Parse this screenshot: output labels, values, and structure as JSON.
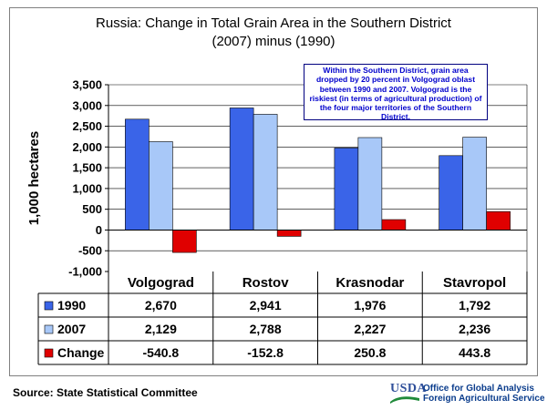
{
  "title_line1": "Russia:  Change in Total Grain Area in the Southern District",
  "title_line2": "(2007) minus (1990)",
  "note": "Within the Southern District, grain area dropped by 20 percent in Volgograd oblast between 1990 and 2007.  Volgograd is the riskiest (in terms of agricultural production) of the four major territories of the Southern District.",
  "source": "Source:  State Statistical Committee",
  "logo": {
    "name": "USDA",
    "line1": "Office for Global Analysis",
    "line2": "Foreign Agricultural Service"
  },
  "chart_data": {
    "type": "bar",
    "ylabel": "1,000 hectares",
    "ylim": [
      -1000,
      3500
    ],
    "yticks": [
      -1000,
      -500,
      0,
      500,
      1000,
      1500,
      2000,
      2500,
      3000,
      3500
    ],
    "ytick_labels": [
      "-1,000",
      "-500",
      "0",
      "500",
      "1,000",
      "1,500",
      "2,000",
      "2,500",
      "3,000",
      "3,500"
    ],
    "grid": "horizontal",
    "categories": [
      "Volgograd",
      "Rostov",
      "Krasnodar",
      "Stavropol"
    ],
    "series": [
      {
        "name": "1990",
        "color": "#3a64e8",
        "values": [
          2670,
          2941,
          1976,
          1792
        ],
        "labels": [
          "2,670",
          "2,941",
          "1,976",
          "1,792"
        ]
      },
      {
        "name": "2007",
        "color": "#a8c8f8",
        "values": [
          2129,
          2788,
          2227,
          2236
        ],
        "labels": [
          "2,129",
          "2,788",
          "2,227",
          "2,236"
        ]
      },
      {
        "name": "Change",
        "color": "#e00000",
        "values": [
          -540.8,
          -152.8,
          250.8,
          443.8
        ],
        "labels": [
          "-540.8",
          "-152.8",
          "250.8",
          "443.8"
        ]
      }
    ],
    "data_table": true
  }
}
